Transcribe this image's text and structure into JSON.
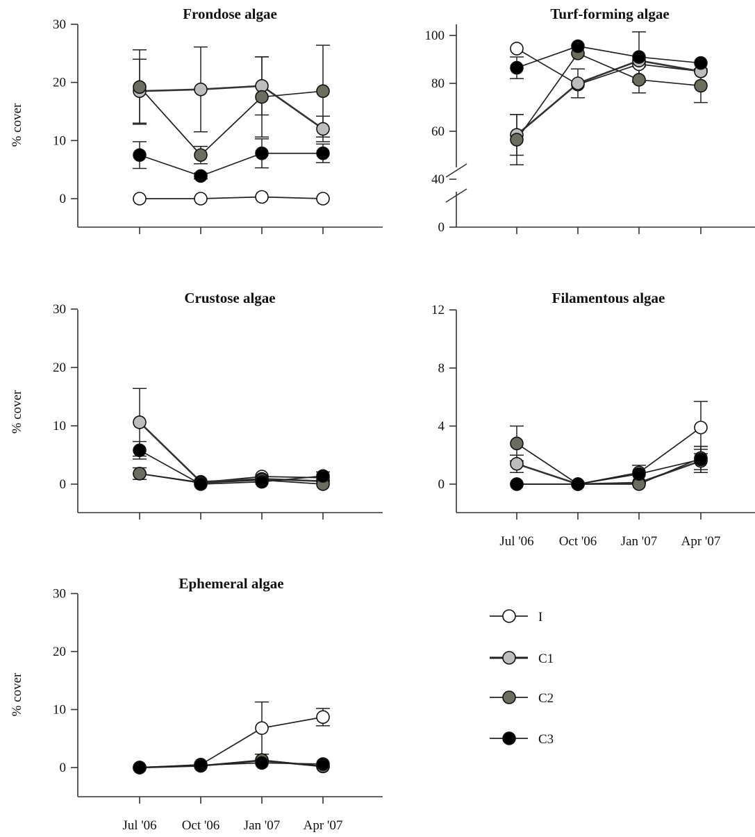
{
  "legend": [
    {
      "name": "I",
      "fill": "#ffffff"
    },
    {
      "name": "C1",
      "fill": "#bdbdbd"
    },
    {
      "name": "C2",
      "fill": "#6b6e5e"
    },
    {
      "name": "C3",
      "fill": "#000000"
    }
  ],
  "x_categories": [
    "Jul '06",
    "Oct '06",
    "Jan '07",
    "Apr '07"
  ],
  "chart_data": [
    {
      "type": "line",
      "title": "Frondose algae",
      "ylabel": "% cover",
      "ylim": [
        -5,
        30
      ],
      "yticks": [
        0,
        10,
        20,
        30
      ],
      "categories": [
        "Jul '06",
        "Oct '06",
        "Jan '07",
        "Apr '07"
      ],
      "show_xticklabels": false,
      "series": [
        {
          "name": "I",
          "values": [
            0,
            0,
            0.3,
            0
          ],
          "errors": [
            0,
            0,
            0,
            0
          ]
        },
        {
          "name": "C1",
          "values": [
            18.5,
            18.8,
            19.4,
            12.0
          ],
          "errors": [
            5.5,
            7.3,
            5.0,
            2.2
          ]
        },
        {
          "name": "C2",
          "values": [
            19.2,
            7.5,
            17.5,
            18.5
          ],
          "errors": [
            6.4,
            1.5,
            6.9,
            7.9
          ]
        },
        {
          "name": "C3",
          "values": [
            7.5,
            3.9,
            7.8,
            7.8
          ],
          "errors": [
            2.3,
            0.5,
            2.5,
            1.6
          ]
        }
      ]
    },
    {
      "type": "line",
      "title": "Turf-forming algae",
      "ylabel": "",
      "ylim": [
        0,
        100
      ],
      "yticks": [
        0,
        40,
        60,
        80,
        100
      ],
      "axis_break": [
        0,
        40
      ],
      "categories": [
        "Jul '06",
        "Oct '06",
        "Jan '07",
        "Apr '07"
      ],
      "show_xticklabels": false,
      "series": [
        {
          "name": "I",
          "values": [
            94.5,
            79.5,
            88.0,
            85.0
          ],
          "errors": [
            0,
            0,
            0,
            0
          ]
        },
        {
          "name": "C1",
          "values": [
            58.5,
            80.0,
            89.5,
            85.0
          ],
          "errors": [
            8.5,
            6.0,
            0,
            0
          ]
        },
        {
          "name": "C2",
          "values": [
            56.5,
            92.5,
            81.5,
            79.0
          ],
          "errors": [
            10.5,
            0,
            5.5,
            7.0
          ]
        },
        {
          "name": "C3",
          "values": [
            86.5,
            95.5,
            91.0,
            88.5
          ],
          "errors": [
            4.5,
            0,
            10.5,
            0
          ]
        }
      ]
    },
    {
      "type": "line",
      "title": "Crustose algae",
      "ylabel": "% cover",
      "ylim": [
        -5,
        30
      ],
      "yticks": [
        0,
        10,
        20,
        30
      ],
      "categories": [
        "Jul '06",
        "Oct '06",
        "Jan '07",
        "Apr '07"
      ],
      "show_xticklabels": false,
      "series": [
        {
          "name": "I",
          "values": [
            1.8,
            0.3,
            1.3,
            1.1
          ],
          "errors": [
            0,
            0,
            0,
            0
          ]
        },
        {
          "name": "C1",
          "values": [
            10.6,
            0.4,
            0.9,
            0.5
          ],
          "errors": [
            5.8,
            0,
            0,
            0
          ]
        },
        {
          "name": "C2",
          "values": [
            1.8,
            0.2,
            0.7,
            0
          ],
          "errors": [
            1.0,
            0,
            0,
            0
          ]
        },
        {
          "name": "C3",
          "values": [
            5.8,
            0,
            0.4,
            1.4
          ],
          "errors": [
            1.5,
            0,
            0,
            0.7
          ]
        }
      ]
    },
    {
      "type": "line",
      "title": "Filamentous algae",
      "ylabel": "",
      "ylim": [
        -2,
        12
      ],
      "yticks": [
        0,
        4,
        8,
        12
      ],
      "categories": [
        "Jul '06",
        "Oct '06",
        "Jan '07",
        "Apr '07"
      ],
      "show_xticklabels": true,
      "series": [
        {
          "name": "I",
          "values": [
            0,
            0,
            0.8,
            3.9
          ],
          "errors": [
            0,
            0,
            0,
            1.8
          ]
        },
        {
          "name": "C1",
          "values": [
            1.4,
            0,
            0.1,
            1.6
          ],
          "errors": [
            0.6,
            0,
            0,
            0.8
          ]
        },
        {
          "name": "C2",
          "values": [
            2.8,
            0,
            0,
            1.8
          ],
          "errors": [
            1.2,
            0,
            0,
            0.8
          ]
        },
        {
          "name": "C3",
          "values": [
            0,
            0,
            0.7,
            1.7
          ],
          "errors": [
            0,
            0,
            0.6,
            0.9
          ]
        }
      ]
    },
    {
      "type": "line",
      "title": "Ephemeral algae",
      "ylabel": "% cover",
      "ylim": [
        -5,
        30
      ],
      "yticks": [
        0,
        10,
        20,
        30
      ],
      "categories": [
        "Jul '06",
        "Oct '06",
        "Jan '07",
        "Apr '07"
      ],
      "show_xticklabels": true,
      "series": [
        {
          "name": "I",
          "values": [
            0,
            0.5,
            6.8,
            8.7
          ],
          "errors": [
            0,
            0,
            4.5,
            1.5
          ]
        },
        {
          "name": "C1",
          "values": [
            0,
            0.3,
            1.2,
            0.2
          ],
          "errors": [
            0,
            0,
            0,
            0
          ]
        },
        {
          "name": "C2",
          "values": [
            0,
            0.3,
            1.3,
            0.2
          ],
          "errors": [
            0,
            0,
            0,
            0
          ]
        },
        {
          "name": "C3",
          "values": [
            0,
            0.4,
            0.8,
            0.6
          ],
          "errors": [
            0,
            0,
            0,
            0
          ]
        }
      ]
    }
  ]
}
